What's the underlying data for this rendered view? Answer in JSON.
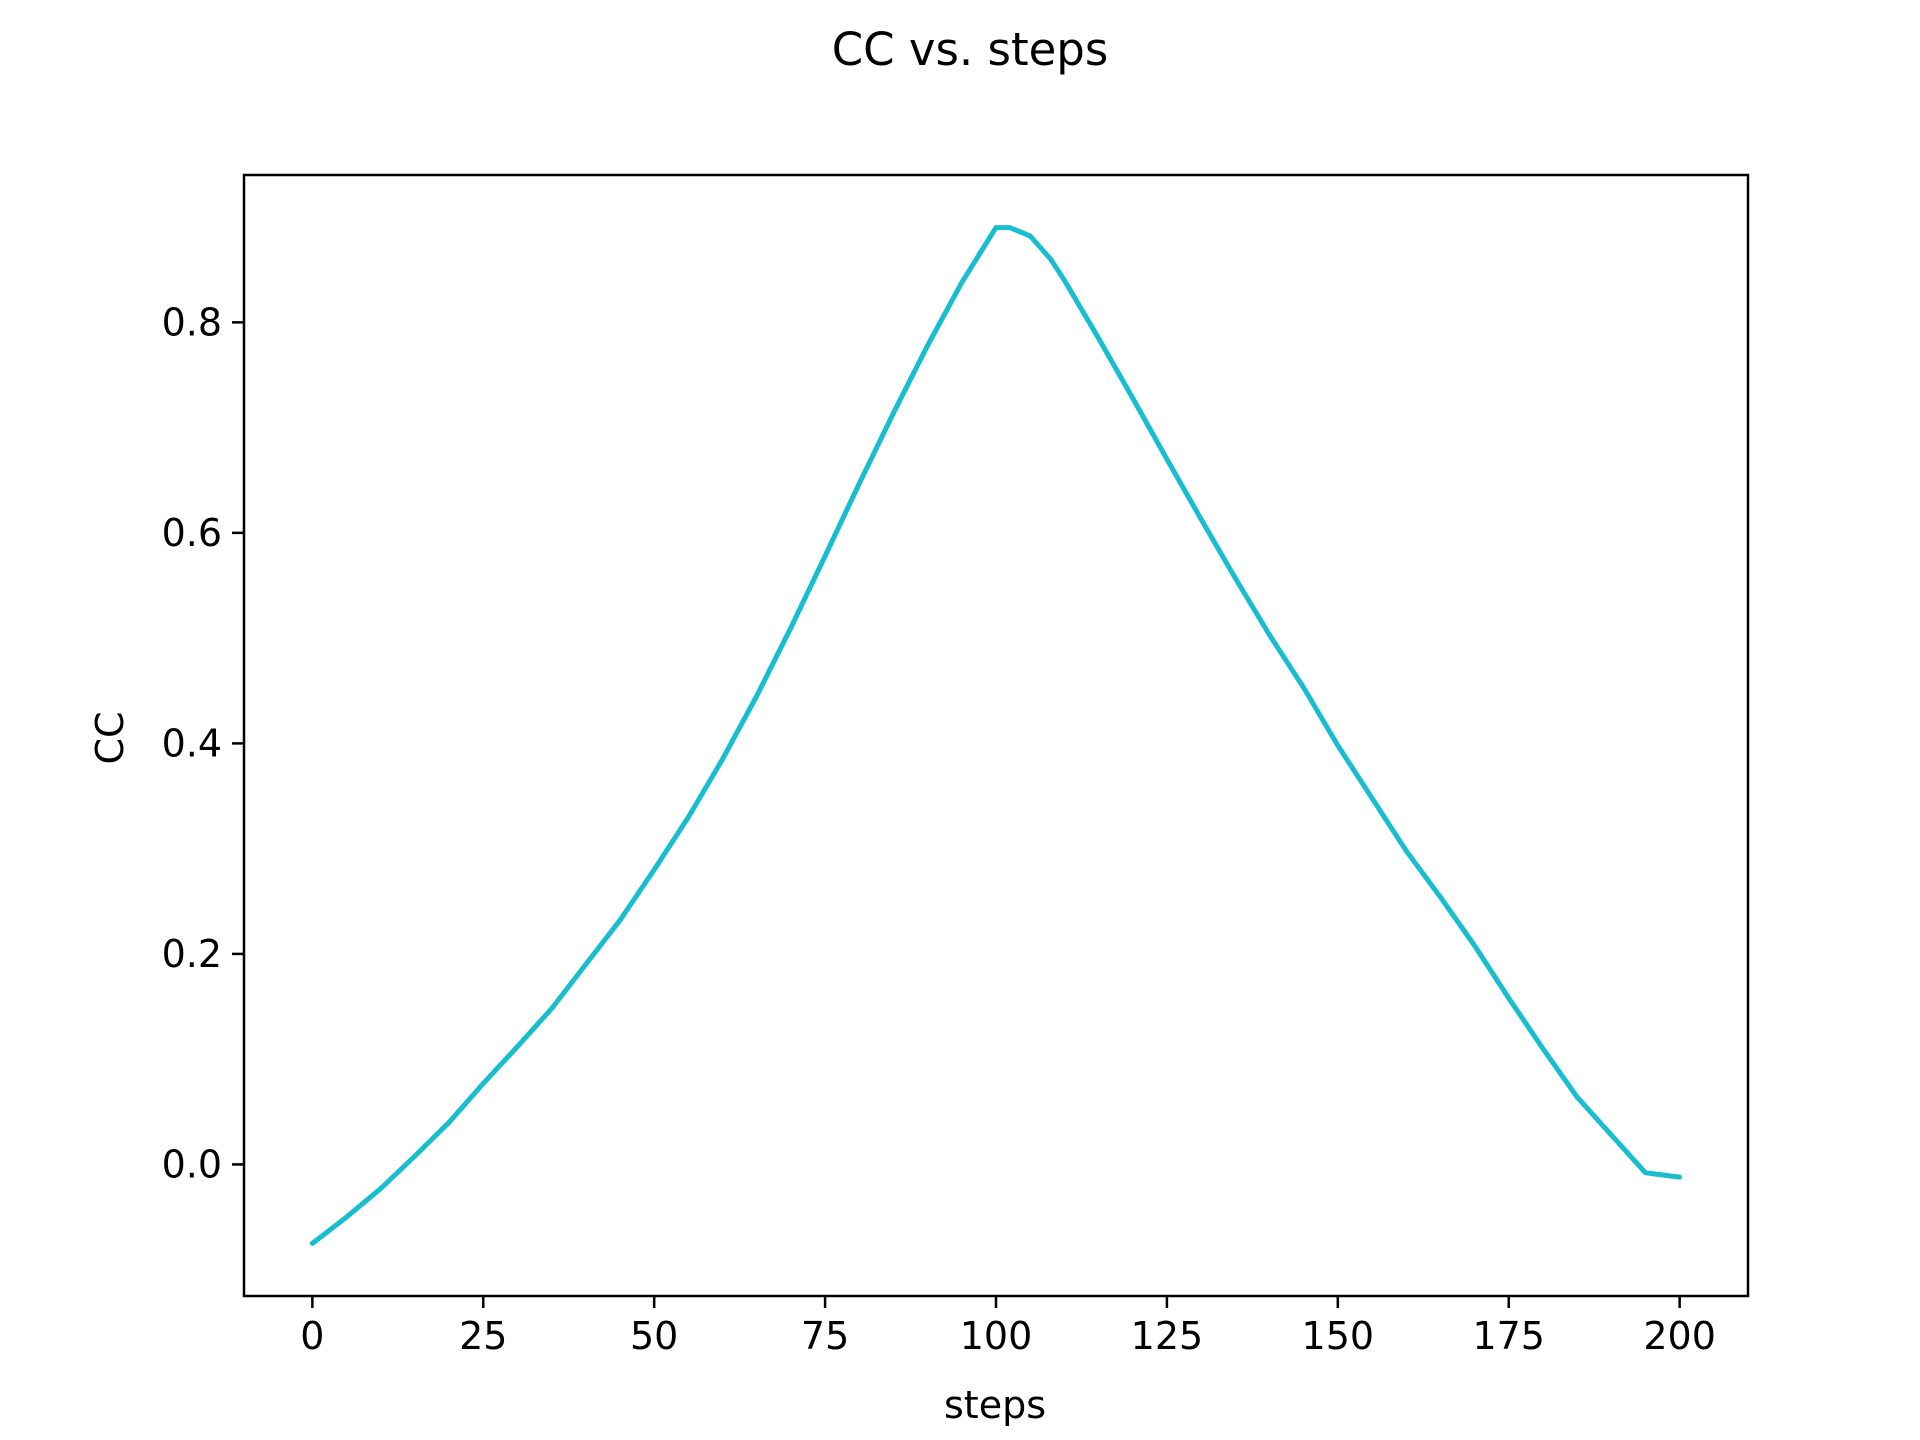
{
  "chart_data": {
    "type": "line",
    "title": "CC vs. steps",
    "xlabel": "steps",
    "ylabel": "CC",
    "xlim": [
      -10,
      210
    ],
    "ylim": [
      -0.125,
      0.94
    ],
    "x_ticks": [
      0,
      25,
      50,
      75,
      100,
      125,
      150,
      175,
      200
    ],
    "x_tick_labels": [
      "0",
      "25",
      "50",
      "75",
      "100",
      "125",
      "150",
      "175",
      "200"
    ],
    "y_ticks": [
      0.0,
      0.2,
      0.4,
      0.6,
      0.8
    ],
    "y_tick_labels": [
      "0.0",
      "0.2",
      "0.4",
      "0.6",
      "0.8"
    ],
    "grid": false,
    "legend": "none",
    "line_color": "#17becf",
    "series": [
      {
        "x": [
          0,
          5,
          10,
          15,
          20,
          25,
          30,
          35,
          40,
          45,
          50,
          55,
          60,
          65,
          70,
          75,
          80,
          85,
          90,
          95,
          100,
          102,
          105,
          108,
          110,
          115,
          120,
          125,
          130,
          135,
          140,
          145,
          150,
          155,
          160,
          165,
          170,
          175,
          180,
          185,
          190,
          195,
          200
        ],
        "y": [
          -0.075,
          -0.05,
          -0.023,
          0.008,
          0.04,
          0.077,
          0.112,
          0.148,
          0.19,
          0.232,
          0.28,
          0.33,
          0.385,
          0.445,
          0.51,
          0.578,
          0.647,
          0.714,
          0.778,
          0.838,
          0.89,
          0.89,
          0.882,
          0.86,
          0.84,
          0.785,
          0.728,
          0.67,
          0.613,
          0.557,
          0.503,
          0.453,
          0.398,
          0.348,
          0.298,
          0.254,
          0.208,
          0.158,
          0.11,
          0.064,
          0.028,
          -0.008,
          -0.012
        ]
      }
    ]
  }
}
